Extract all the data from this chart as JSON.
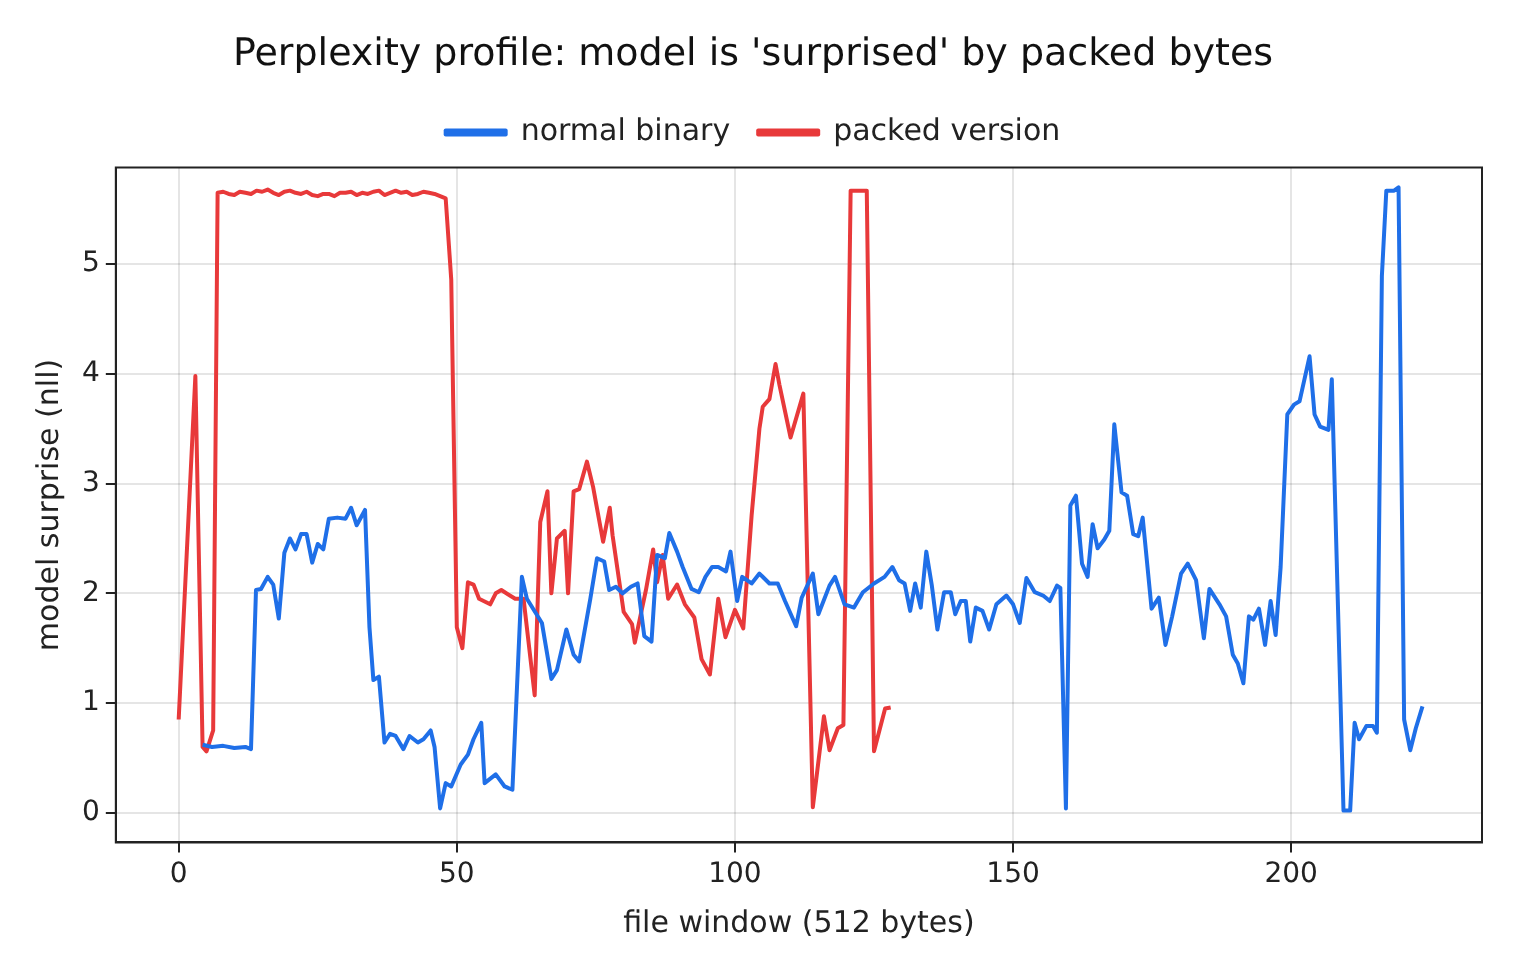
{
  "chart_data": {
    "type": "line",
    "title": "Perplexity profile: model is 'surprised' by packed bytes",
    "xlabel": "file window (512 bytes)",
    "ylabel": "model surprise (nll)",
    "xlim": [
      -11.3,
      234.3
    ],
    "xticks": [
      0,
      50,
      100,
      150,
      200
    ],
    "ylim": [
      -0.27,
      5.88
    ],
    "yticks": [
      0,
      1,
      2,
      3,
      4,
      5
    ],
    "grid": true,
    "legend": "top",
    "marker": "none",
    "series": [
      {
        "name": "normal binary",
        "color": "#1f6fe8",
        "x": [
          4.3,
          6,
          8,
          10,
          12,
          13,
          13.9,
          14.8,
          16,
          17,
          18,
          19,
          20,
          21,
          22,
          23,
          24,
          25,
          26,
          27,
          28.5,
          30,
          31,
          32,
          33.5,
          34.3,
          35,
          36,
          37,
          38,
          39,
          40.4,
          41.5,
          43,
          44,
          45.3,
          46,
          47,
          48,
          49,
          50.7,
          52,
          53,
          54.4,
          55,
          57,
          58.6,
          60,
          61,
          61.7,
          62.6,
          65.3,
          67,
          68,
          69.7,
          71,
          72,
          74,
          75.2,
          76.5,
          77.4,
          78.6,
          79.8,
          81.3,
          82.5,
          83.7,
          85,
          86,
          87.4,
          88.2,
          89.6,
          90.6,
          92.2,
          93.5,
          94.7,
          95.9,
          97,
          98.4,
          99.2,
          100.4,
          101.3,
          103,
          104.4,
          106.2,
          107.7,
          109,
          111,
          112,
          114,
          115,
          117,
          118,
          119.7,
          121.4,
          123,
          125,
          126.9,
          128.3,
          129.5,
          130.5,
          131.5,
          132.4,
          133.4,
          134.4,
          135.4,
          136.4,
          137.6,
          138.8,
          139.6,
          140.6,
          141.5,
          142.3,
          143.3,
          144.5,
          145.7,
          147,
          148.8,
          150,
          151.2,
          152.4,
          153.9,
          155.4,
          156.6,
          157.9,
          158.5,
          159.5,
          160.3,
          161.3,
          162.4,
          163.4,
          164.3,
          165.2,
          166.4,
          167.3,
          168.2,
          169.5,
          170.5,
          171.6,
          172.5,
          173.3,
          174.9,
          176.2,
          177.4,
          178.6,
          180.2,
          181.4,
          182.9,
          184.3,
          185.3,
          187.1,
          188.3,
          189.5,
          190.4,
          191.4,
          192.4,
          193.2,
          194.2,
          195.3,
          196.3,
          197.2,
          198.1,
          199.3,
          200.5,
          201.5,
          203.3,
          204.2,
          205.2,
          206.7,
          207.3,
          209.4,
          210.6,
          211.4,
          212.2,
          213.5,
          214.7,
          215.4,
          216.3,
          217.1,
          218.5,
          219.3,
          220.3,
          221.4,
          222.4,
          223.6
        ],
        "values": [
          0.62,
          0.6,
          0.61,
          0.59,
          0.6,
          0.58,
          2.03,
          2.04,
          2.15,
          2.08,
          1.77,
          2.37,
          2.5,
          2.4,
          2.54,
          2.54,
          2.28,
          2.45,
          2.4,
          2.68,
          2.69,
          2.68,
          2.78,
          2.62,
          2.76,
          1.69,
          1.21,
          1.24,
          0.64,
          0.72,
          0.7,
          0.58,
          0.7,
          0.64,
          0.67,
          0.75,
          0.6,
          0.04,
          0.27,
          0.24,
          0.44,
          0.53,
          0.67,
          0.82,
          0.27,
          0.35,
          0.24,
          0.21,
          1.35,
          2.15,
          1.95,
          1.73,
          1.22,
          1.3,
          1.67,
          1.44,
          1.38,
          1.95,
          2.32,
          2.29,
          2.03,
          2.06,
          2.0,
          2.06,
          2.09,
          1.61,
          1.56,
          2.35,
          2.32,
          2.55,
          2.38,
          2.24,
          2.04,
          2.01,
          2.15,
          2.24,
          2.24,
          2.2,
          2.38,
          1.93,
          2.15,
          2.09,
          2.18,
          2.09,
          2.09,
          1.93,
          1.7,
          1.96,
          2.18,
          1.81,
          2.07,
          2.15,
          1.9,
          1.87,
          2.01,
          2.09,
          2.15,
          2.24,
          2.12,
          2.09,
          1.84,
          2.09,
          1.87,
          2.38,
          2.07,
          1.67,
          2.01,
          2.01,
          1.81,
          1.93,
          1.93,
          1.56,
          1.87,
          1.84,
          1.67,
          1.9,
          1.98,
          1.9,
          1.73,
          2.14,
          2.01,
          1.98,
          1.93,
          2.07,
          2.05,
          0.04,
          2.8,
          2.89,
          2.27,
          2.15,
          2.63,
          2.41,
          2.49,
          2.57,
          3.54,
          2.92,
          2.89,
          2.54,
          2.52,
          2.69,
          1.86,
          1.96,
          1.53,
          1.79,
          2.18,
          2.27,
          2.12,
          1.59,
          2.04,
          1.9,
          1.79,
          1.44,
          1.36,
          1.18,
          1.79,
          1.76,
          1.86,
          1.53,
          1.93,
          1.62,
          2.24,
          3.63,
          3.72,
          3.75,
          4.16,
          3.63,
          3.52,
          3.49,
          3.95,
          0.02,
          0.02,
          0.82,
          0.67,
          0.79,
          0.79,
          0.73,
          4.89,
          5.67,
          5.67,
          5.7,
          0.85,
          0.57,
          0.77,
          0.97
        ]
      },
      {
        "name": "packed version",
        "color": "#e8393a",
        "x": [
          0,
          3,
          4.3,
          5,
          6.2,
          7,
          8,
          9,
          10,
          11,
          12,
          13,
          14,
          15,
          16,
          17,
          18,
          19,
          20,
          21,
          22,
          23,
          24,
          25,
          26,
          27,
          28,
          29,
          30,
          31,
          32,
          33,
          34,
          35,
          36,
          37,
          38,
          39,
          40,
          41,
          42,
          43,
          44,
          45,
          46,
          47,
          48,
          49,
          50,
          51,
          52,
          53,
          54,
          56,
          57,
          58,
          60.5,
          62,
          64,
          65,
          66.3,
          67,
          68,
          69.4,
          70,
          71,
          72,
          73.4,
          74.5,
          76.3,
          77.5,
          78,
          80,
          81.5,
          82,
          84,
          85.3,
          86,
          87,
          88,
          89.6,
          91,
          92.7,
          94,
          95.5,
          97,
          98.3,
          100,
          101.5,
          103,
          104.4,
          105,
          106.2,
          107.3,
          108,
          110,
          112.3,
          114,
          116,
          117,
          118.5,
          119.5,
          120.8,
          123.7,
          125,
          127,
          128
        ],
        "values": [
          0.85,
          3.98,
          0.6,
          0.56,
          0.75,
          5.65,
          5.66,
          5.64,
          5.63,
          5.66,
          5.65,
          5.64,
          5.67,
          5.66,
          5.68,
          5.65,
          5.63,
          5.66,
          5.67,
          5.65,
          5.64,
          5.66,
          5.63,
          5.62,
          5.64,
          5.64,
          5.62,
          5.65,
          5.65,
          5.66,
          5.63,
          5.65,
          5.64,
          5.66,
          5.67,
          5.63,
          5.65,
          5.67,
          5.65,
          5.66,
          5.63,
          5.64,
          5.66,
          5.65,
          5.64,
          5.62,
          5.6,
          4.86,
          1.69,
          1.5,
          2.1,
          2.08,
          1.95,
          1.9,
          2.0,
          2.03,
          1.95,
          1.95,
          1.07,
          2.65,
          2.93,
          2.0,
          2.5,
          2.57,
          2.0,
          2.93,
          2.95,
          3.2,
          2.97,
          2.47,
          2.78,
          2.53,
          1.83,
          1.72,
          1.55,
          2.03,
          2.4,
          2.1,
          2.35,
          1.95,
          2.08,
          1.9,
          1.78,
          1.4,
          1.26,
          1.95,
          1.6,
          1.85,
          1.68,
          2.71,
          3.5,
          3.7,
          3.77,
          4.09,
          3.9,
          3.42,
          3.82,
          0.05,
          0.88,
          0.57,
          0.77,
          0.8,
          5.67,
          5.67,
          0.56,
          0.95,
          0.96
        ]
      }
    ]
  }
}
